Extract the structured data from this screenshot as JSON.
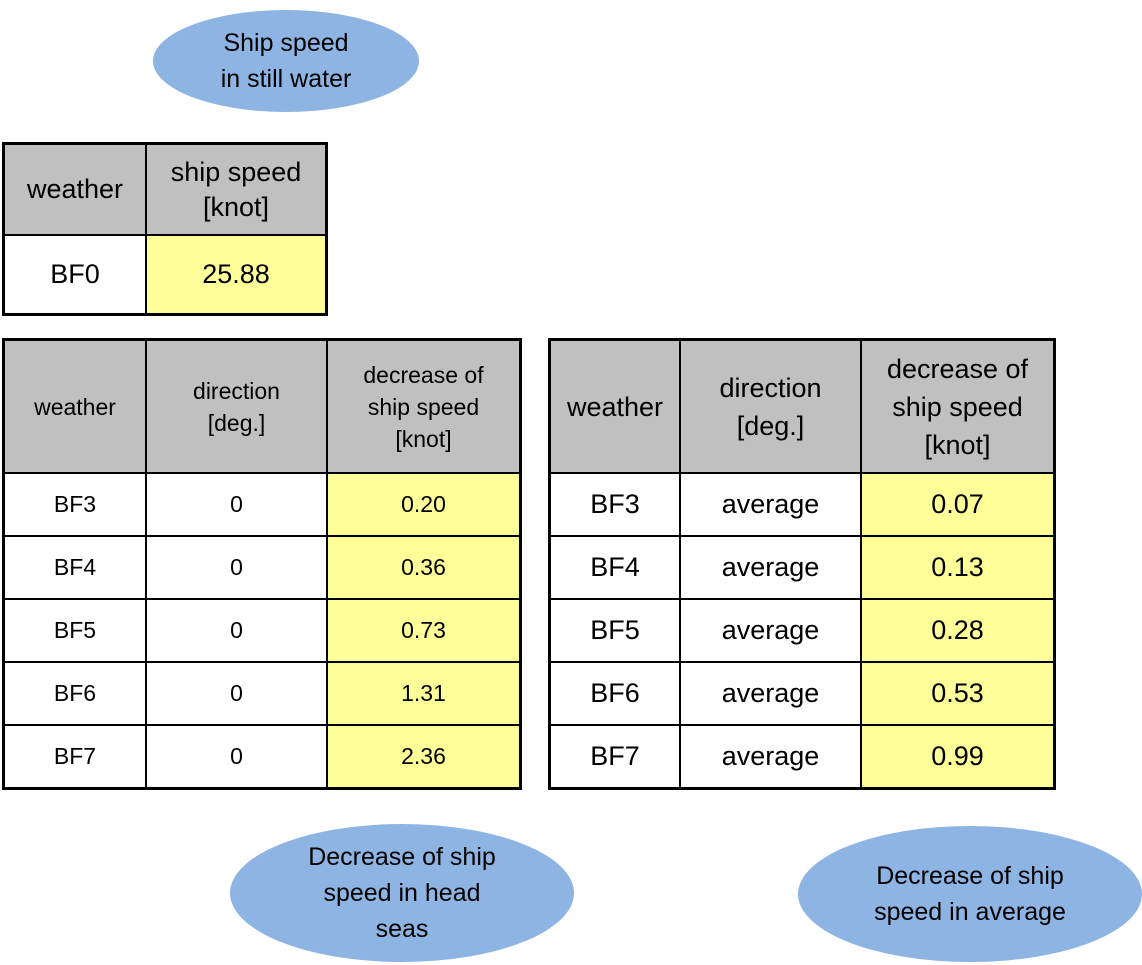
{
  "labels": {
    "still_water": [
      "Ship speed",
      "in still water"
    ],
    "head_seas": [
      "Decrease of ship",
      "speed in head",
      "seas"
    ],
    "average": [
      "Decrease of ship",
      "speed in average"
    ]
  },
  "still_table": {
    "headers": [
      "weather",
      [
        "ship speed",
        "[knot]"
      ]
    ],
    "rows": [
      {
        "weather": "BF0",
        "speed": "25.88"
      }
    ]
  },
  "head_table": {
    "headers": [
      "weather",
      [
        "direction",
        "[deg.]"
      ],
      [
        "decrease of",
        "ship speed",
        "[knot]"
      ]
    ],
    "rows": [
      {
        "weather": "BF3",
        "direction": "0",
        "decrease": "0.20"
      },
      {
        "weather": "BF4",
        "direction": "0",
        "decrease": "0.36"
      },
      {
        "weather": "BF5",
        "direction": "0",
        "decrease": "0.73"
      },
      {
        "weather": "BF6",
        "direction": "0",
        "decrease": "1.31"
      },
      {
        "weather": "BF7",
        "direction": "0",
        "decrease": "2.36"
      }
    ]
  },
  "avg_table": {
    "headers": [
      "weather",
      [
        "direction",
        "[deg.]"
      ],
      [
        "decrease of",
        "ship speed",
        "[knot]"
      ]
    ],
    "rows": [
      {
        "weather": "BF3",
        "direction": "average",
        "decrease": "0.07"
      },
      {
        "weather": "BF4",
        "direction": "average",
        "decrease": "0.13"
      },
      {
        "weather": "BF5",
        "direction": "average",
        "decrease": "0.28"
      },
      {
        "weather": "BF6",
        "direction": "average",
        "decrease": "0.53"
      },
      {
        "weather": "BF7",
        "direction": "average",
        "decrease": "0.99"
      }
    ]
  }
}
